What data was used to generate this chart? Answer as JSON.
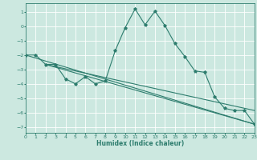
{
  "xlabel": "Humidex (Indice chaleur)",
  "xlim": [
    0,
    23
  ],
  "ylim": [
    -7.4,
    1.6
  ],
  "yticks": [
    1,
    0,
    -1,
    -2,
    -3,
    -4,
    -5,
    -6,
    -7
  ],
  "xticks": [
    0,
    1,
    2,
    3,
    4,
    5,
    6,
    7,
    8,
    9,
    10,
    11,
    12,
    13,
    14,
    15,
    16,
    17,
    18,
    19,
    20,
    21,
    22,
    23
  ],
  "bg_color": "#cce8e0",
  "grid_color": "#ffffff",
  "line_color": "#2e7d6e",
  "series0": {
    "x": [
      0,
      1,
      2,
      3,
      4,
      5,
      6,
      7,
      8,
      9,
      10,
      11,
      12,
      13,
      14,
      15,
      16,
      17,
      18,
      19,
      20,
      21,
      22,
      23
    ],
    "y": [
      -2.0,
      -2.0,
      -2.65,
      -2.65,
      -3.65,
      -4.0,
      -3.5,
      -4.0,
      -3.8,
      -1.7,
      -0.1,
      1.2,
      0.1,
      1.05,
      0.05,
      -1.2,
      -2.1,
      -3.1,
      -3.2,
      -4.9,
      -5.7,
      -5.85,
      -5.85,
      -6.8
    ]
  },
  "trend1": {
    "x": [
      0,
      23
    ],
    "y": [
      -2.0,
      -6.8
    ]
  },
  "trend2": {
    "x": [
      2,
      23
    ],
    "y": [
      -2.65,
      -5.85
    ]
  },
  "trend3": {
    "x": [
      2,
      23
    ],
    "y": [
      -2.65,
      -6.8
    ]
  }
}
